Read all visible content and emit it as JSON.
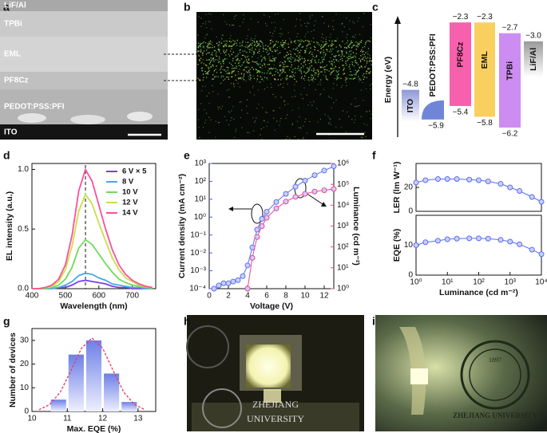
{
  "panel_labels": [
    "a",
    "b",
    "c",
    "d",
    "e",
    "f",
    "g",
    "h",
    "i"
  ],
  "images": {
    "a": {
      "labels": [
        "LiF/Al",
        "TPBi",
        "EML",
        "PF8Cz",
        "PEDOT:PSS:PFI",
        "ITO"
      ]
    },
    "h": {
      "texts": [
        "ZHEJIANG",
        "UNIVERSITY"
      ]
    },
    "i": {
      "texts": [
        "ZHEJIANG UNIVERSITY",
        "1897"
      ]
    }
  },
  "energy_diagram": {
    "ylabel": "Energy (eV)",
    "layers": [
      {
        "name": "ITO",
        "values": [
          -4.8
        ],
        "value_labels": [
          "−4.8"
        ],
        "color": "#8f97d8"
      },
      {
        "name": "PEDOT:PSS:PFI",
        "values": [
          -5.9
        ],
        "value_labels": [
          "−5.9"
        ],
        "color": "#6f86d8"
      },
      {
        "name": "PF8Cz",
        "values": [
          -2.3,
          -5.4
        ],
        "value_labels": [
          "−2.3",
          "−5.4"
        ],
        "color": "#f760ac"
      },
      {
        "name": "EML",
        "values": [
          -2.3,
          -5.8
        ],
        "value_labels": [
          "−2.3",
          "−5.8"
        ],
        "color": "#f9d060"
      },
      {
        "name": "TPBi",
        "values": [
          -2.7,
          -6.2
        ],
        "value_labels": [
          "−2.7",
          "−6.2"
        ],
        "color": "#cc8cf2"
      },
      {
        "name": "LiF/Al",
        "values": [
          -3.0
        ],
        "value_labels": [
          "−3.0"
        ],
        "color": "#9a9a9a"
      }
    ]
  },
  "chart_data": [
    {
      "type": "line",
      "xlabel": "Wavelength (nm)",
      "ylabel": "EL intensity (a.u.)",
      "xlim": [
        400,
        770
      ],
      "xticks": [
        400,
        500,
        600,
        700
      ],
      "ylim": [
        0,
        1.05
      ],
      "yticks": [
        {
          "value": 0,
          "label": "0.0"
        },
        0.5,
        {
          "value": 1,
          "label": "1.0"
        }
      ],
      "vline": 560,
      "legend": "upper right",
      "x": [
        400,
        420,
        440,
        460,
        480,
        500,
        520,
        540,
        560,
        580,
        600,
        620,
        640,
        660,
        680,
        700,
        720,
        740,
        760
      ],
      "series": [
        {
          "name": "6 V × 5",
          "color": "#7b3fe4",
          "values": [
            0,
            0,
            0,
            0,
            0.01,
            0.01,
            0.03,
            0.06,
            0.07,
            0.06,
            0.05,
            0.04,
            0.02,
            0.01,
            0.01,
            0,
            0,
            0,
            0
          ]
        },
        {
          "name": "8 V",
          "color": "#4aa8e8",
          "values": [
            0,
            0,
            0,
            0,
            0.01,
            0.03,
            0.06,
            0.11,
            0.13,
            0.12,
            0.09,
            0.07,
            0.04,
            0.03,
            0.02,
            0.01,
            0.01,
            0,
            0
          ]
        },
        {
          "name": "10 V",
          "color": "#6fdc5a",
          "values": [
            0,
            0,
            0,
            0.01,
            0.03,
            0.08,
            0.18,
            0.34,
            0.41,
            0.37,
            0.29,
            0.21,
            0.14,
            0.08,
            0.05,
            0.03,
            0.02,
            0.01,
            0
          ]
        },
        {
          "name": "12 V",
          "color": "#c8e04a",
          "values": [
            0,
            0,
            0.01,
            0.02,
            0.06,
            0.16,
            0.36,
            0.65,
            0.79,
            0.71,
            0.55,
            0.4,
            0.26,
            0.16,
            0.09,
            0.06,
            0.03,
            0.02,
            0.01
          ]
        },
        {
          "name": "14 V",
          "color": "#ff4f9a",
          "values": [
            0,
            0,
            0.01,
            0.03,
            0.08,
            0.2,
            0.45,
            0.82,
            1.0,
            0.9,
            0.7,
            0.5,
            0.33,
            0.2,
            0.12,
            0.07,
            0.04,
            0.02,
            0.01
          ]
        }
      ]
    },
    {
      "type": "scatter",
      "xlabel": "Voltage (V)",
      "ylabel": "Current density (mA cm⁻²)",
      "y2label": "Luminance (cd m⁻²)",
      "y_color": "#4a5ee8",
      "y2_color": "#f0468c",
      "xlim": [
        0,
        13
      ],
      "xticks": [
        0,
        2,
        4,
        6,
        8,
        10,
        12
      ],
      "yscale": "log",
      "ylim": [
        0.0001,
        1000
      ],
      "yticks": [
        {
          "value": 0.0001,
          "label": "10⁻⁴"
        },
        {
          "value": 0.001,
          "label": "10⁻³"
        },
        {
          "value": 0.01,
          "label": "10⁻²"
        },
        {
          "value": 0.1,
          "label": "10⁻¹"
        },
        {
          "value": 1,
          "label": "10⁰"
        },
        {
          "value": 10,
          "label": "10¹"
        },
        {
          "value": 100,
          "label": "10²"
        },
        {
          "value": 1000,
          "label": "10³"
        }
      ],
      "y2scale": "log",
      "y2lim": [
        1,
        1000000
      ],
      "y2ticks": [
        {
          "value": 1,
          "label": "10⁰"
        },
        {
          "value": 10,
          "label": "10¹"
        },
        {
          "value": 100,
          "label": "10²"
        },
        {
          "value": 1000,
          "label": "10³"
        },
        {
          "value": 10000,
          "label": "10⁴"
        },
        {
          "value": 100000,
          "label": "10⁵"
        },
        {
          "value": 1000000,
          "label": "10⁶"
        }
      ],
      "series": [
        {
          "name": "Current density",
          "color": "#5a6ef0",
          "x": [
            0.5,
            1,
            1.5,
            2,
            2.5,
            3,
            3.5,
            4,
            4.5,
            5,
            5.5,
            6,
            7,
            8,
            9,
            10,
            11,
            12,
            13
          ],
          "values": [
            0.0001,
            0.00015,
            0.0002,
            0.0002,
            0.00025,
            0.0003,
            0.0005,
            0.002,
            0.02,
            0.2,
            0.8,
            2,
            7,
            20,
            50,
            110,
            220,
            400,
            700
          ]
        },
        {
          "name": "Luminance",
          "axis": "y2",
          "color": "#f0468c",
          "x": [
            4,
            4.5,
            5,
            5.5,
            6,
            7,
            8,
            9,
            10,
            11,
            12,
            13
          ],
          "values": [
            1,
            30,
            300,
            1000,
            2500,
            7000,
            15000,
            25000,
            35000,
            45000,
            52000,
            60000
          ]
        }
      ]
    },
    {
      "type": "scatter",
      "ylabel": "LER (lm W⁻¹)",
      "xscale": "log",
      "xlim": [
        1,
        10000
      ],
      "ylim": [
        0,
        40
      ],
      "yticks": [
        0,
        20
      ],
      "x": [
        1,
        2,
        5,
        10,
        20,
        50,
        100,
        200,
        500,
        1000,
        2000,
        5000,
        10000
      ],
      "series": [
        {
          "name": "LER",
          "color": "#5a6ef0",
          "values": [
            24,
            26,
            27,
            27,
            27,
            26.5,
            26,
            25,
            23,
            20,
            17,
            12,
            8
          ]
        }
      ]
    },
    {
      "type": "scatter",
      "xlabel": "Luminance (cd m⁻²)",
      "ylabel": "EQE (%)",
      "xscale": "log",
      "xlim": [
        1,
        10000
      ],
      "xticks": [
        {
          "value": 1,
          "label": "10⁰"
        },
        {
          "value": 10,
          "label": "10¹"
        },
        {
          "value": 100,
          "label": "10²"
        },
        {
          "value": 1000,
          "label": "10³"
        },
        {
          "value": 10000,
          "label": "10⁴"
        }
      ],
      "ylim": [
        0,
        20
      ],
      "yticks": [
        0,
        10
      ],
      "x": [
        1,
        2,
        5,
        10,
        20,
        50,
        100,
        200,
        500,
        1000,
        2000,
        5000,
        10000
      ],
      "series": [
        {
          "name": "EQE",
          "color": "#5a6ef0",
          "values": [
            10,
            11,
            11.5,
            12,
            12.2,
            12.3,
            12.3,
            12.2,
            11.8,
            11.2,
            10.3,
            8.5,
            7
          ]
        }
      ]
    },
    {
      "type": "histogram",
      "xlabel": "Max. EQE (%)",
      "ylabel": "Number of devices",
      "color": "#6d7fe6",
      "xlim": [
        10,
        13.5
      ],
      "xticks": [
        10,
        11,
        12,
        13
      ],
      "ylim": [
        0,
        35
      ],
      "yticks": [
        0,
        10,
        20,
        30
      ],
      "bins": [
        10.5,
        11,
        11.5,
        12,
        12.5,
        13
      ],
      "counts": [
        5,
        24,
        30,
        16,
        4
      ],
      "fit": {
        "color": "#e8406a",
        "x": [
          10.2,
          10.5,
          10.8,
          11.1,
          11.4,
          11.7,
          12.0,
          12.3,
          12.6,
          12.9,
          13.2
        ],
        "values": [
          0.75,
          2.9,
          8.1,
          17.1,
          26.7,
          31,
          26.7,
          17.1,
          8.1,
          2.9,
          0.75
        ]
      }
    }
  ]
}
